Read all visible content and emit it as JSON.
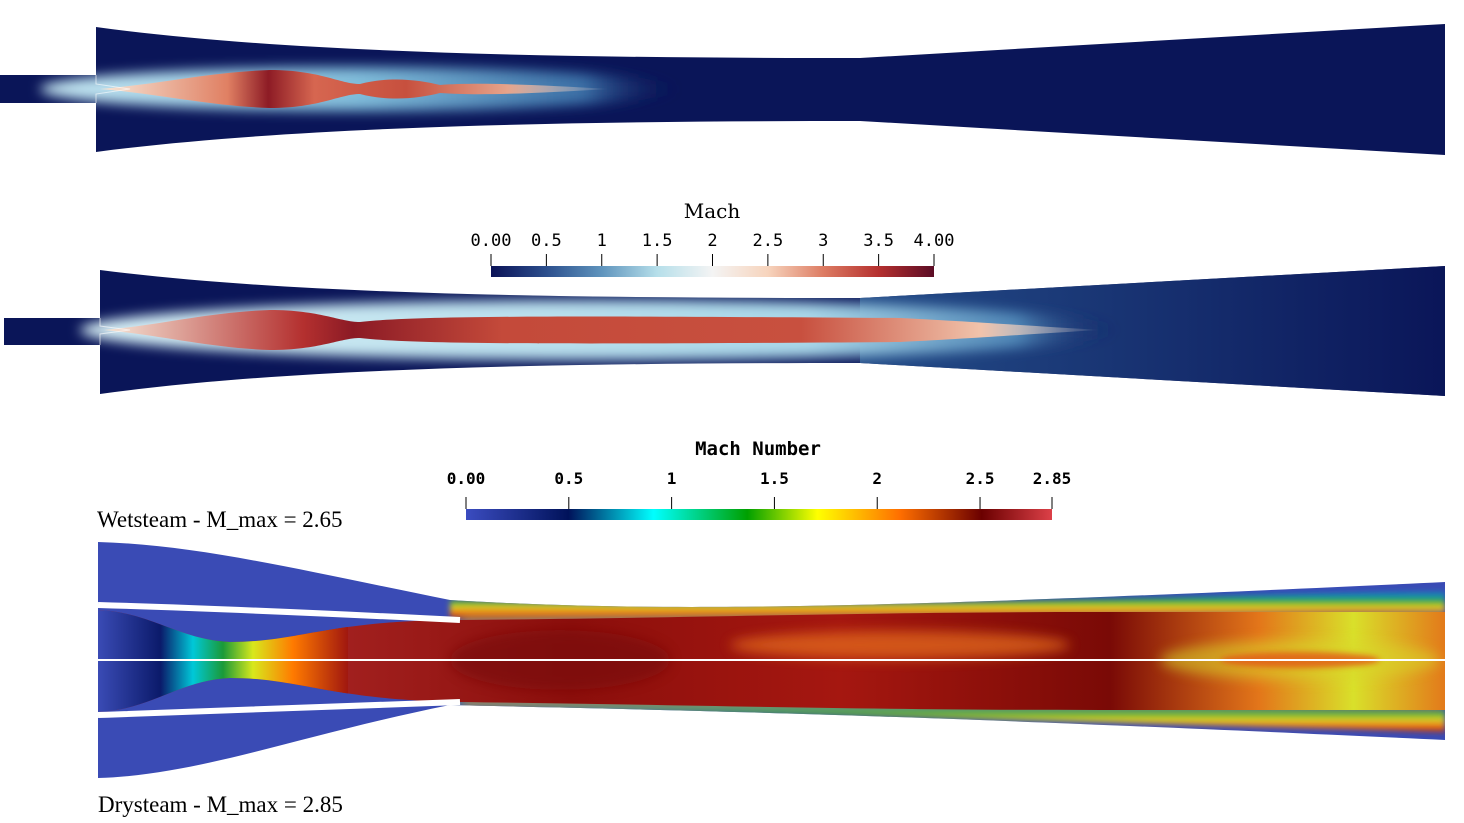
{
  "colorbar_top": {
    "title": "Mach",
    "ticks": [
      "0.00",
      "0.5",
      "1",
      "1.5",
      "2",
      "2.5",
      "3",
      "3.5",
      "4.00"
    ],
    "range": [
      0,
      4
    ],
    "colors": [
      "#0b1257",
      "#2c4f8d",
      "#5f94bd",
      "#b6dfea",
      "#f4f4f4",
      "#f7d4bd",
      "#dd7c63",
      "#b5302f",
      "#5b0c25"
    ]
  },
  "colorbar_bottom": {
    "title": "Mach Number",
    "ticks": [
      "0.00",
      "0.5",
      "1",
      "1.5",
      "2",
      "2.5",
      "2.85"
    ],
    "range": [
      0,
      2.85
    ],
    "colors": [
      "#3b4cc0",
      "#00125a",
      "#00ffff",
      "#00a000",
      "#ffff00",
      "#ff6f00",
      "#6b0000",
      "#dc4048"
    ]
  },
  "captions": {
    "wetsteam": "Wetsteam - M_max = 2.65",
    "drysteam": "Drysteam - M_max = 2.85"
  },
  "diagrams": {
    "ejector_1": {
      "background_color": "#0a1558",
      "jet_color": "#c8503f",
      "max_mach": 4.0
    },
    "ejector_2": {
      "background_color": "#0a1558",
      "jet_color": "#c8503f"
    },
    "ejector_3": {
      "background_color": "#3a4bb5",
      "jet_color": "#9e1a16"
    }
  }
}
